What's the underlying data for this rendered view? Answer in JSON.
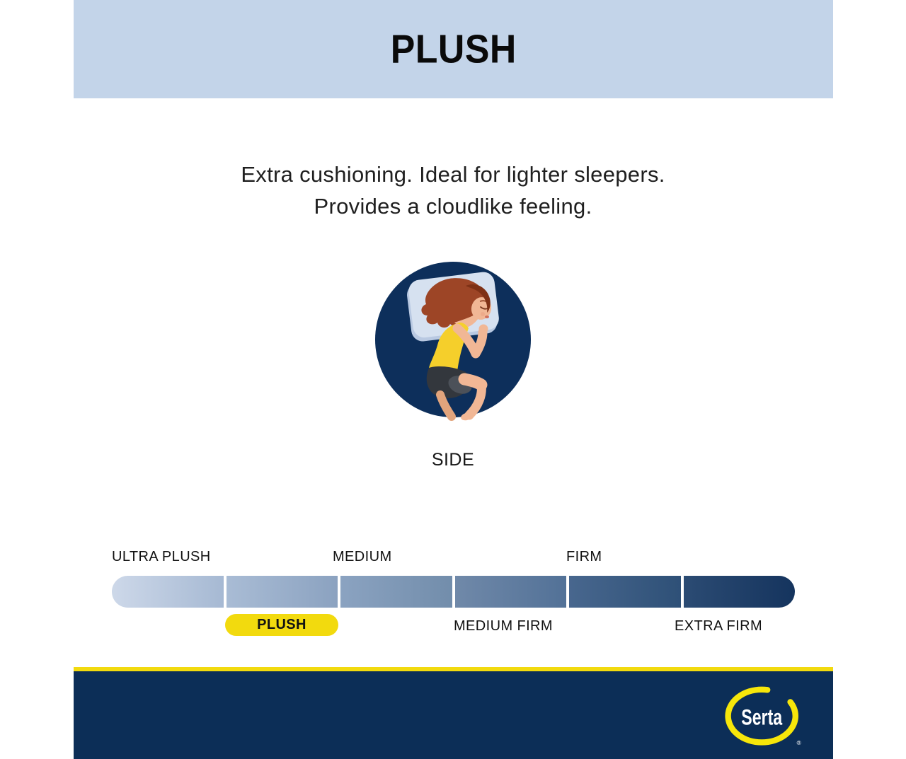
{
  "banner": {
    "title": "PLUSH"
  },
  "description": {
    "line1": "Extra cushioning. Ideal for lighter sleepers.",
    "line2": "Provides a cloudlike feeling."
  },
  "sleep_position": {
    "label": "SIDE",
    "icon": "side-sleeper-illustration"
  },
  "firmness_scale": {
    "top_labels": [
      "ULTRA PLUSH",
      "MEDIUM",
      "FIRM"
    ],
    "bottom_labels": [
      "MEDIUM FIRM",
      "EXTRA FIRM"
    ],
    "selected_label": "PLUSH",
    "segments": [
      {
        "name": "ultra-plush",
        "from": "#cdd8e9",
        "to": "#a6b9d3"
      },
      {
        "name": "plush",
        "from": "#a9bcd5",
        "to": "#8ba2c0"
      },
      {
        "name": "medium",
        "from": "#8ba3c1",
        "to": "#728dab"
      },
      {
        "name": "medium-firm",
        "from": "#7089a9",
        "to": "#527197"
      },
      {
        "name": "firm",
        "from": "#48678e",
        "to": "#2e5077"
      },
      {
        "name": "extra-firm",
        "from": "#2b4b73",
        "to": "#15345e"
      }
    ]
  },
  "footer": {
    "brand": "Serta",
    "registered_mark": "®"
  },
  "colors": {
    "banner_bg": "#c3d4e9",
    "heading_text": "#0a0a0a",
    "body_text": "#1f1f1f",
    "label_text": "#111111",
    "pill_text": "#121212",
    "circle_navy": "#0d2f5b",
    "footer_navy": "#0c2e57",
    "accent_yellow": "#f2da0e",
    "logo_yellow": "#f6e60a",
    "pillow": "#d6e1f0",
    "pillow_shadow": "#b9c9e2",
    "skin": "#f1b795",
    "skin_shadow": "#e2a47c",
    "hair": "#9d4526",
    "hair_dark": "#7e3116",
    "top_yellow": "#f5cf2b",
    "shorts": "#33373d",
    "shorts_light": "#4c5159"
  }
}
